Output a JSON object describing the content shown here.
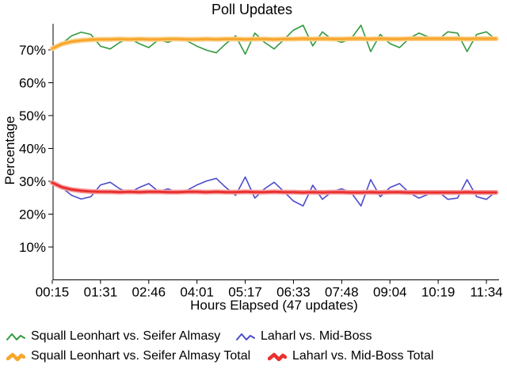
{
  "chart_data": {
    "type": "line",
    "title": "Poll Updates",
    "xlabel": "Hours Elapsed (47 updates)",
    "ylabel": "Percentage",
    "x_points": 47,
    "x_tick_labels": [
      "00:15",
      "01:31",
      "02:46",
      "04:01",
      "05:17",
      "06:33",
      "07:48",
      "09:04",
      "10:19",
      "11:34"
    ],
    "y_tick_values": [
      10,
      20,
      30,
      40,
      50,
      60,
      70
    ],
    "y_tick_labels": [
      "10%",
      "20%",
      "30%",
      "40%",
      "50%",
      "60%",
      "70%"
    ],
    "ylim": [
      0,
      78
    ],
    "grid": false,
    "legend_position": "bottom",
    "axis_color": "#000000",
    "background_color": "#ffffff",
    "series": [
      {
        "name": "Squall Leonhart vs. Seifer Almasy",
        "color": "#339a3d",
        "style": "thin",
        "width": 1.6,
        "values": [
          70.4,
          71.9,
          74.3,
          75.4,
          74.7,
          71.1,
          70.3,
          72.3,
          73.5,
          71.9,
          70.7,
          73.1,
          72.3,
          73.5,
          72.7,
          71.1,
          69.9,
          69.1,
          71.9,
          74.3,
          68.7,
          75.1,
          72.3,
          70.3,
          73.1,
          76.0,
          77.5,
          71.2,
          75.5,
          73.1,
          72.3,
          73.5,
          77.5,
          69.5,
          74.7,
          71.9,
          70.7,
          73.5,
          75.1,
          73.9,
          73.1,
          75.5,
          75.1,
          69.5,
          74.7,
          75.5,
          73.1
        ]
      },
      {
        "name": "Laharl vs. Mid-Boss",
        "color": "#4c4ccc",
        "style": "thin",
        "width": 1.6,
        "values": [
          29.6,
          28.1,
          25.7,
          24.6,
          25.3,
          28.9,
          29.7,
          27.7,
          26.5,
          28.1,
          29.3,
          26.9,
          27.7,
          26.5,
          27.3,
          28.9,
          30.1,
          30.9,
          28.1,
          25.7,
          31.3,
          24.9,
          27.7,
          29.7,
          26.9,
          24.0,
          22.5,
          28.8,
          24.5,
          26.9,
          27.7,
          26.5,
          22.5,
          30.5,
          25.3,
          28.1,
          29.3,
          26.5,
          24.9,
          26.1,
          26.9,
          24.5,
          24.9,
          30.5,
          25.3,
          24.5,
          26.9
        ]
      },
      {
        "name": "Squall Leonhart vs. Seifer Almasy Total",
        "color": "#f7a62d",
        "halo": "#fbd189",
        "style": "thick",
        "width": 3,
        "values": [
          70.4,
          71.8,
          72.5,
          72.9,
          73.1,
          73.2,
          73.2,
          73.3,
          73.2,
          73.3,
          73.2,
          73.2,
          73.3,
          73.3,
          73.2,
          73.2,
          73.3,
          73.2,
          73.3,
          73.3,
          73.2,
          73.3,
          73.3,
          73.2,
          73.3,
          73.3,
          73.4,
          73.3,
          73.4,
          73.3,
          73.3,
          73.4,
          73.4,
          73.3,
          73.4,
          73.3,
          73.3,
          73.4,
          73.4,
          73.4,
          73.4,
          73.4,
          73.4,
          73.3,
          73.4,
          73.4,
          73.4
        ]
      },
      {
        "name": "Laharl vs. Mid-Boss Total",
        "color": "#e93030",
        "halo": "#f59f9f",
        "style": "thick",
        "width": 3,
        "values": [
          29.6,
          28.2,
          27.5,
          27.1,
          26.9,
          26.8,
          26.8,
          26.7,
          26.8,
          26.7,
          26.8,
          26.8,
          26.7,
          26.7,
          26.8,
          26.8,
          26.7,
          26.8,
          26.7,
          26.7,
          26.8,
          26.7,
          26.7,
          26.8,
          26.7,
          26.7,
          26.6,
          26.7,
          26.6,
          26.7,
          26.7,
          26.6,
          26.6,
          26.7,
          26.6,
          26.7,
          26.7,
          26.6,
          26.6,
          26.6,
          26.6,
          26.6,
          26.6,
          26.7,
          26.6,
          26.6,
          26.6
        ]
      }
    ]
  }
}
